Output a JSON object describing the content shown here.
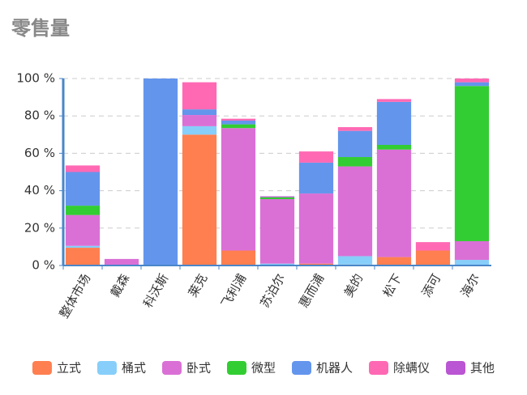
{
  "chart_data": {
    "type": "stacked_bar",
    "title": "零售量",
    "categories": [
      "整体市场",
      "戴森",
      "科沃斯",
      "莱克",
      "飞利浦",
      "苏泊尔",
      "惠而浦",
      "美的",
      "松下",
      "添可",
      "海尔"
    ],
    "series": [
      {
        "name": "立式",
        "color": "#ff7f50",
        "values": [
          9.5,
          0,
          0,
          70,
          8,
          0,
          1,
          0.5,
          4.5,
          8,
          0
        ]
      },
      {
        "name": "桶式",
        "color": "#87cefa",
        "values": [
          1,
          0,
          0,
          4.5,
          0,
          1,
          0,
          4.5,
          0,
          0,
          3
        ]
      },
      {
        "name": "卧式",
        "color": "#da70d6",
        "values": [
          16.5,
          3.5,
          0,
          6,
          65.5,
          34.5,
          37.5,
          48,
          57.5,
          0,
          10
        ]
      },
      {
        "name": "微型",
        "color": "#32cd32",
        "values": [
          5,
          0,
          0,
          0,
          2,
          1,
          0,
          5,
          2.5,
          0,
          83
        ]
      },
      {
        "name": "机器人",
        "color": "#6495ed",
        "values": [
          18,
          0,
          100,
          3,
          2,
          0,
          16.5,
          14,
          23,
          0,
          2
        ]
      },
      {
        "name": "除螨仪",
        "color": "#ff69b4",
        "values": [
          3.5,
          0,
          0,
          14.5,
          1,
          0,
          6,
          2,
          1.5,
          4.5,
          2
        ]
      },
      {
        "name": "其他",
        "color": "#ba55d3",
        "values": [
          0,
          0,
          0,
          0,
          0,
          0.5,
          0,
          0,
          0,
          0,
          0
        ]
      }
    ],
    "ylim": [
      0,
      100
    ],
    "yticks": [
      {
        "value": 0,
        "label": "0 %"
      },
      {
        "value": 20,
        "label": "20 %"
      },
      {
        "value": 40,
        "label": "40 %"
      },
      {
        "value": 60,
        "label": "60 %"
      },
      {
        "value": 80,
        "label": "80 %"
      },
      {
        "value": 100,
        "label": "100 %"
      }
    ],
    "grid": true
  }
}
